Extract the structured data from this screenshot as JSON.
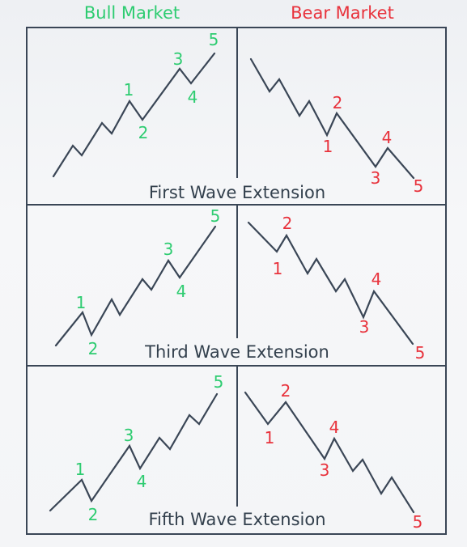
{
  "columns": [
    {
      "label": "Bull Market",
      "color": "#2ecc71"
    },
    {
      "label": "Bear Market",
      "color": "#e8323c"
    }
  ],
  "rows": [
    {
      "caption": "First Wave Extension",
      "bull_labels": [
        "1",
        "2",
        "3",
        "4",
        "5"
      ],
      "bear_labels": [
        "1",
        "2",
        "3",
        "4",
        "5"
      ]
    },
    {
      "caption": "Third Wave Extension",
      "bull_labels": [
        "1",
        "2",
        "3",
        "4",
        "5"
      ],
      "bear_labels": [
        "1",
        "2",
        "3",
        "4",
        "5"
      ]
    },
    {
      "caption": "Fifth Wave Extension",
      "bull_labels": [
        "1",
        "2",
        "3",
        "4",
        "5"
      ],
      "bear_labels": [
        "1",
        "2",
        "3",
        "4",
        "5"
      ]
    }
  ]
}
